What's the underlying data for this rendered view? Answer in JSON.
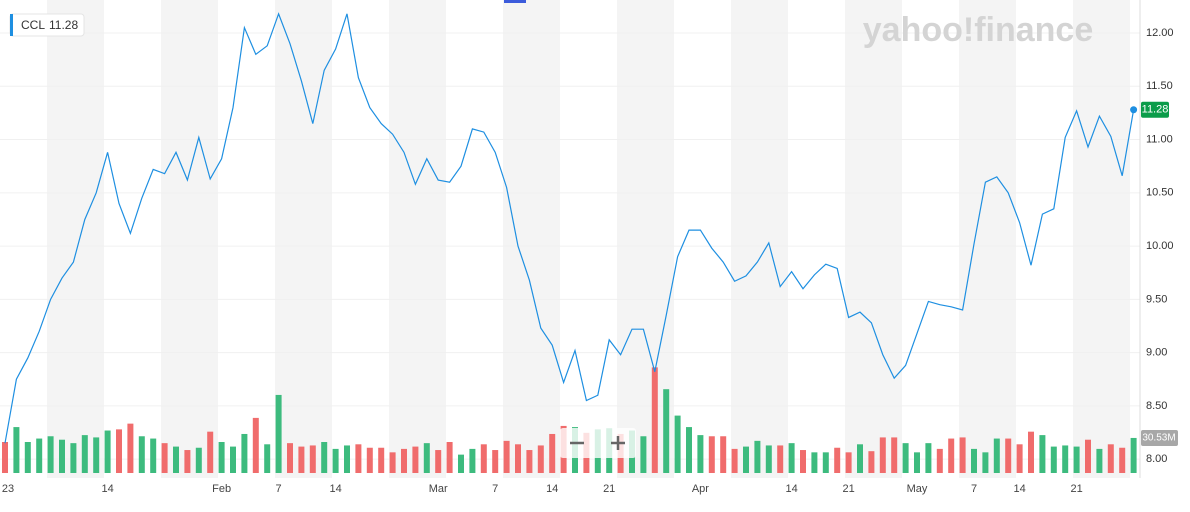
{
  "chart_data": {
    "type": "line",
    "logo": "yahoo!finance",
    "categories": [
      "23",
      null,
      null,
      null,
      null,
      null,
      null,
      null,
      null,
      "14",
      null,
      null,
      null,
      null,
      null,
      null,
      null,
      null,
      null,
      "Feb",
      null,
      null,
      null,
      null,
      "7",
      null,
      null,
      null,
      null,
      "14",
      null,
      null,
      null,
      null,
      null,
      null,
      null,
      null,
      "Mar",
      null,
      null,
      null,
      null,
      "7",
      null,
      null,
      null,
      null,
      "14",
      null,
      null,
      null,
      null,
      "21",
      null,
      null,
      null,
      null,
      null,
      null,
      null,
      "Apr",
      null,
      null,
      null,
      null,
      null,
      null,
      null,
      "14",
      null,
      null,
      null,
      null,
      "21",
      null,
      null,
      null,
      null,
      null,
      "May",
      null,
      null,
      null,
      null,
      "7",
      null,
      null,
      null,
      "14",
      null,
      null,
      null,
      null,
      "21",
      null,
      null,
      null,
      null,
      null
    ],
    "series": [
      {
        "name": "CCL",
        "color": "#1e8fe1",
        "values": [
          8.15,
          8.75,
          8.95,
          9.2,
          9.5,
          9.7,
          9.85,
          10.25,
          10.5,
          10.88,
          10.4,
          10.12,
          10.45,
          10.72,
          10.68,
          10.88,
          10.62,
          11.02,
          10.63,
          10.82,
          11.3,
          12.05,
          11.8,
          11.88,
          12.18,
          11.9,
          11.55,
          11.15,
          11.65,
          11.85,
          12.18,
          11.58,
          11.3,
          11.15,
          11.05,
          10.88,
          10.58,
          10.82,
          10.62,
          10.6,
          10.75,
          11.1,
          11.07,
          10.88,
          10.55,
          10.0,
          9.68,
          9.23,
          9.07,
          8.72,
          9.02,
          8.55,
          8.6,
          9.12,
          8.98,
          9.22,
          9.22,
          8.82,
          9.35,
          9.9,
          10.15,
          10.15,
          9.98,
          9.85,
          9.67,
          9.72,
          9.85,
          10.03,
          9.62,
          9.76,
          9.6,
          9.73,
          9.83,
          9.79,
          9.33,
          9.38,
          9.28,
          8.98,
          8.76,
          8.88,
          9.18,
          9.48,
          9.45,
          9.43,
          9.4,
          10.02,
          10.6,
          10.65,
          10.5,
          10.22,
          9.82,
          10.3,
          10.35,
          11.02,
          11.27,
          10.93,
          11.22,
          11.03,
          10.66,
          11.28
        ]
      },
      {
        "type": "bar",
        "axis": "y2",
        "up_color": "#3dbb7e",
        "down_color": "#f06c6c",
        "values": [
          27,
          40,
          27,
          30,
          32,
          29,
          26,
          33,
          31,
          37,
          38,
          43,
          32,
          30,
          26,
          23,
          20,
          22,
          36,
          27,
          23,
          34,
          48,
          25,
          68,
          26,
          23,
          24,
          27,
          21,
          24,
          25,
          22,
          22,
          18,
          21,
          23,
          26,
          20,
          27,
          16,
          21,
          25,
          20,
          28,
          25,
          20,
          24,
          34,
          41,
          40,
          35,
          38,
          39,
          34,
          37,
          32,
          92,
          73,
          50,
          40,
          33,
          32,
          32,
          21,
          23,
          28,
          24,
          24,
          26,
          20,
          18,
          18,
          22,
          18,
          25,
          19,
          31,
          31,
          26,
          18,
          26,
          21,
          30,
          31,
          21,
          18,
          30,
          30,
          25,
          36,
          33,
          23,
          24,
          23,
          29,
          21,
          25,
          22,
          30.53
        ]
      }
    ],
    "last_volume_label": "30.53M",
    "ylim": [
      7.87,
      12.31
    ],
    "yticks": [
      {
        "value": 8,
        "label": "8.00"
      },
      {
        "value": 8.5,
        "label": "8.50"
      },
      {
        "value": 9,
        "label": "9.00"
      },
      {
        "value": 9.5,
        "label": "9.50"
      },
      {
        "value": 10,
        "label": "10.00"
      },
      {
        "value": 10.5,
        "label": "10.50"
      },
      {
        "value": 11,
        "label": "11.00"
      },
      {
        "value": 11.5,
        "label": "11.50"
      },
      {
        "value": 12,
        "label": "12.00"
      }
    ],
    "y2lim": [
      0,
      412
    ],
    "grid": true
  }
}
